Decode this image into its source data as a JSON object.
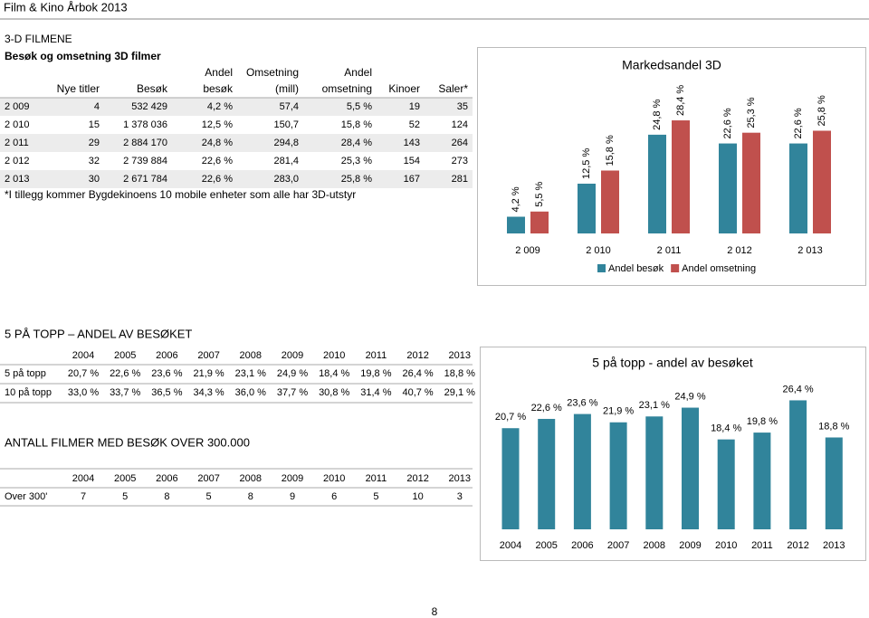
{
  "header": {
    "title": "Film & Kino Årbok 2013"
  },
  "section_3d": {
    "heading": "3-D FILMENE",
    "subheading": "Besøk og omsetning 3D filmer",
    "table": {
      "columns": [
        [
          "Nye titler"
        ],
        [
          "Besøk"
        ],
        [
          "Andel",
          "besøk"
        ],
        [
          "Omsetning",
          "(mill)"
        ],
        [
          "Andel",
          "omsetning"
        ],
        [
          "Kinoer"
        ],
        [
          "Saler*"
        ]
      ],
      "rows": [
        [
          "2 009",
          "4",
          "532 429",
          "4,2 %",
          "57,4",
          "5,5 %",
          "19",
          "35"
        ],
        [
          "2 010",
          "15",
          "1 378 036",
          "12,5 %",
          "150,7",
          "15,8 %",
          "52",
          "124"
        ],
        [
          "2 011",
          "29",
          "2 884 170",
          "24,8 %",
          "294,8",
          "28,4 %",
          "143",
          "264"
        ],
        [
          "2 012",
          "32",
          "2 739 884",
          "22,6 %",
          "281,4",
          "25,3 %",
          "154",
          "273"
        ],
        [
          "2 013",
          "30",
          "2 671 784",
          "22,6 %",
          "283,0",
          "25,8 %",
          "167",
          "281"
        ]
      ]
    },
    "note": "*I tillegg kommer Bygdekinoens 10 mobile enheter som alle har 3D-utstyr"
  },
  "section_top5": {
    "heading": "5 PÅ TOPP – ANDEL AV BESØKET",
    "table": {
      "columns": [
        "2004",
        "2005",
        "2006",
        "2007",
        "2008",
        "2009",
        "2010",
        "2011",
        "2012",
        "2013"
      ],
      "rows": [
        {
          "label": "5 på topp",
          "cells": [
            "20,7 %",
            "22,6 %",
            "23,6 %",
            "21,9 %",
            "23,1 %",
            "24,9 %",
            "18,4 %",
            "19,8 %",
            "26,4 %",
            "18,8 %"
          ]
        },
        {
          "label": "10 på topp",
          "cells": [
            "33,0 %",
            "33,7 %",
            "36,5 %",
            "34,3 %",
            "36,0 %",
            "37,7 %",
            "30,8 %",
            "31,4 %",
            "40,7 %",
            "29,1 %"
          ]
        }
      ]
    }
  },
  "section_films": {
    "heading": "ANTALL FILMER MED BESØK OVER 300.000",
    "table": {
      "columns": [
        "2004",
        "2005",
        "2006",
        "2007",
        "2008",
        "2009",
        "2010",
        "2011",
        "2012",
        "2013"
      ],
      "rows": [
        {
          "label": "Over 300'",
          "cells": [
            "7",
            "5",
            "8",
            "5",
            "8",
            "9",
            "6",
            "5",
            "10",
            "3"
          ]
        }
      ]
    }
  },
  "chart_data": [
    {
      "type": "bar",
      "title": "Markedsandel 3D",
      "categories": [
        "2 009",
        "2 010",
        "2 011",
        "2 012",
        "2 013"
      ],
      "legend": "bottom",
      "series": [
        {
          "name": "Andel besøk",
          "color": "#31849b",
          "values": [
            4.2,
            12.5,
            24.8,
            22.6,
            22.6
          ],
          "value_labels": [
            "4,2 %",
            "12,5 %",
            "24,8 %",
            "22,6 %",
            "22,6 %"
          ]
        },
        {
          "name": "Andel omsetning",
          "color": "#c0504d",
          "values": [
            5.5,
            15.8,
            28.4,
            25.3,
            25.8
          ],
          "value_labels": [
            "5,5 %",
            "15,8 %",
            "28,4 %",
            "25,3 %",
            "25,8 %"
          ]
        }
      ]
    },
    {
      "type": "bar",
      "title": "5 på topp - andel av besøket",
      "categories": [
        "2004",
        "2005",
        "2006",
        "2007",
        "2008",
        "2009",
        "2010",
        "2011",
        "2012",
        "2013"
      ],
      "color": "#31849b",
      "values": [
        20.7,
        22.6,
        23.6,
        21.9,
        23.1,
        24.9,
        18.4,
        19.8,
        26.4,
        18.8
      ],
      "value_labels": [
        "20,7 %",
        "22,6 %",
        "23,6 %",
        "21,9 %",
        "23,1 %",
        "24,9 %",
        "18,4 %",
        "19,8 %",
        "26,4 %",
        "18,8 %"
      ]
    }
  ],
  "footer": {
    "page": "8"
  }
}
